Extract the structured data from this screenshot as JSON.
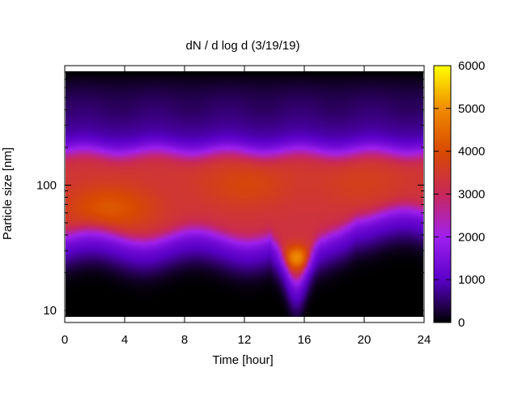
{
  "chart_data": {
    "type": "heatmap",
    "title": "dN / d log d (3/19/19)",
    "xlabel": "Time [hour]",
    "ylabel": "Particle size [nm]",
    "xlim": [
      0,
      24
    ],
    "ylim": [
      8,
      900
    ],
    "y_scale": "log",
    "x_ticks": [
      0,
      4,
      8,
      12,
      16,
      20,
      24
    ],
    "x_tick_labels": [
      "0",
      "4",
      "8",
      "12",
      "16",
      "20",
      "24"
    ],
    "y_ticks": [
      10,
      100
    ],
    "y_tick_labels": [
      "10",
      "100"
    ],
    "colorbar": {
      "min": 0,
      "max": 6000,
      "ticks": [
        0,
        1000,
        2000,
        3000,
        4000,
        5000,
        6000
      ],
      "tick_labels": [
        "0",
        "1000",
        "2000",
        "3000",
        "4000",
        "5000",
        "6000"
      ],
      "colormap": "gnuplot-pm3d",
      "colors": [
        "#000000",
        "#5a00c8",
        "#a020f0",
        "#c8285a",
        "#d84a00",
        "#f08c00",
        "#ffff00"
      ]
    },
    "grid": false,
    "legend": "none",
    "features": [
      {
        "x": 3,
        "y": 65,
        "value": 4300
      },
      {
        "x": 12,
        "y": 100,
        "value": 3900
      },
      {
        "x": 15.5,
        "y": 25,
        "value": 5200
      },
      {
        "x": 20,
        "y": 100,
        "value": 3700
      }
    ]
  }
}
